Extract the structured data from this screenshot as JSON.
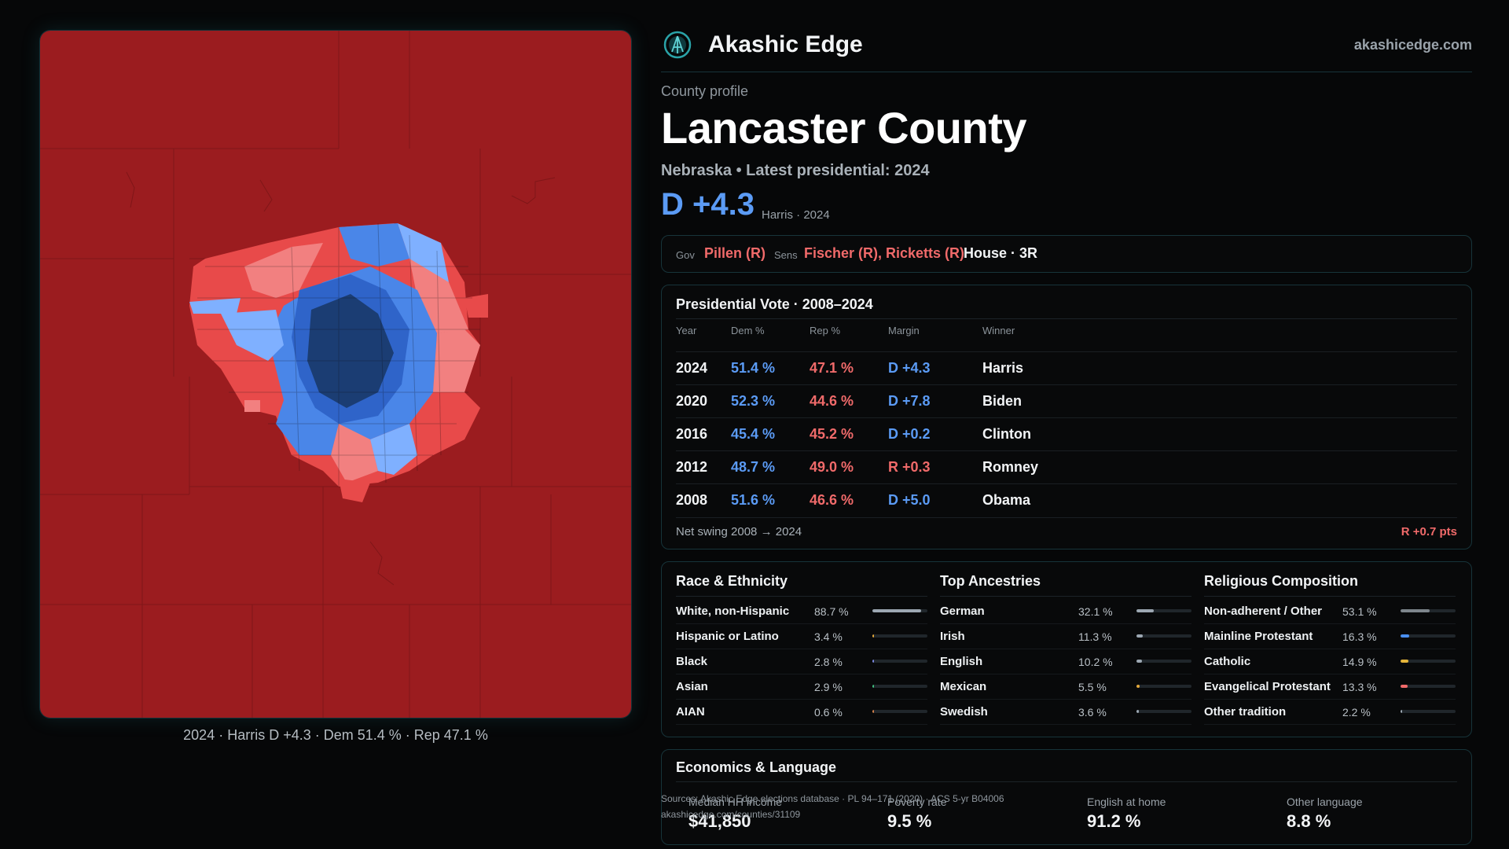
{
  "brand": {
    "name": "Akashic Edge",
    "site": "akashicedge.com"
  },
  "header": {
    "kicker": "County profile",
    "title": "Lancaster County",
    "subtitle": "Nebraska • Latest presidential: 2024",
    "margin": "D +4.3",
    "margin_note": "Harris · 2024"
  },
  "officials": {
    "gov_label": "Gov",
    "gov_value": "Pillen (R)",
    "sens_label": "Sens",
    "sens_value": "Fischer (R), Ricketts (R)",
    "house": "House · 3R"
  },
  "presidential": {
    "title": "Presidential Vote · 2008–2024",
    "columns": [
      "Year",
      "Dem %",
      "Rep %",
      "Margin",
      "Winner"
    ],
    "rows": [
      {
        "year": "2024",
        "dem": "51.4 %",
        "rep": "47.1 %",
        "margin": "D +4.3",
        "party": "D",
        "winner": "Harris"
      },
      {
        "year": "2020",
        "dem": "52.3 %",
        "rep": "44.6 %",
        "margin": "D +7.8",
        "party": "D",
        "winner": "Biden"
      },
      {
        "year": "2016",
        "dem": "45.4 %",
        "rep": "45.2 %",
        "margin": "D +0.2",
        "party": "D",
        "winner": "Clinton"
      },
      {
        "year": "2012",
        "dem": "48.7 %",
        "rep": "49.0 %",
        "margin": "R +0.3",
        "party": "R",
        "winner": "Romney"
      },
      {
        "year": "2008",
        "dem": "51.6 %",
        "rep": "46.6 %",
        "margin": "D +5.0",
        "party": "D",
        "winner": "Obama"
      }
    ],
    "swing_label": "Net swing 2008 → 2024",
    "swing_value": "R +0.7 pts"
  },
  "race": {
    "title": "Race & Ethnicity",
    "items": [
      {
        "name": "White, non-Hispanic",
        "pct": "88.7 %",
        "share": 0.887,
        "color": "#9ca7b2"
      },
      {
        "name": "Hispanic or Latino",
        "pct": "3.4 %",
        "share": 0.034,
        "color": "#e5a93a"
      },
      {
        "name": "Black",
        "pct": "2.8 %",
        "share": 0.028,
        "color": "#7a86e0"
      },
      {
        "name": "Asian",
        "pct": "2.9 %",
        "share": 0.029,
        "color": "#3fbf7f"
      },
      {
        "name": "AIAN",
        "pct": "0.6 %",
        "share": 0.006,
        "color": "#d4804a"
      }
    ]
  },
  "ancestries": {
    "title": "Top Ancestries",
    "items": [
      {
        "name": "German",
        "pct": "32.1 %",
        "share": 0.321,
        "color": "#9ca7b2"
      },
      {
        "name": "Irish",
        "pct": "11.3 %",
        "share": 0.113,
        "color": "#9ca7b2"
      },
      {
        "name": "English",
        "pct": "10.2 %",
        "share": 0.102,
        "color": "#9ca7b2"
      },
      {
        "name": "Mexican",
        "pct": "5.5 %",
        "share": 0.055,
        "color": "#e5a93a"
      },
      {
        "name": "Swedish",
        "pct": "3.6 %",
        "share": 0.036,
        "color": "#9ca7b2"
      }
    ]
  },
  "religion": {
    "title": "Religious Composition",
    "items": [
      {
        "name": "Non-adherent / Other",
        "pct": "53.1 %",
        "share": 0.531,
        "color": "#7d858c"
      },
      {
        "name": "Mainline Protestant",
        "pct": "16.3 %",
        "share": 0.163,
        "color": "#4a8ff0"
      },
      {
        "name": "Catholic",
        "pct": "14.9 %",
        "share": 0.149,
        "color": "#e5b53a"
      },
      {
        "name": "Evangelical Protestant",
        "pct": "13.3 %",
        "share": 0.133,
        "color": "#f06a6a"
      },
      {
        "name": "Other tradition",
        "pct": "2.2 %",
        "share": 0.022,
        "color": "#9ca7b2"
      }
    ]
  },
  "economics": {
    "title": "Economics & Language",
    "stats": [
      {
        "label": "Median HH income",
        "value": "$41,850"
      },
      {
        "label": "Poverty rate",
        "value": "9.5 %"
      },
      {
        "label": "English at home",
        "value": "91.2 %"
      },
      {
        "label": "Other language",
        "value": "8.8 %"
      }
    ]
  },
  "sources": {
    "line1": "Sources: Akashic Edge elections database · PL 94–171 (2020) · ACS 5-yr B04006",
    "line2": "akashicedge.com/counties/31109"
  },
  "map": {
    "caption": "2024 · Harris D +4.3 · Dem 51.4 % · Rep 47.1 %",
    "colors": {
      "rural_red": "#9b1c1f",
      "red": "#c42a2c",
      "light_red": "#e84a4a",
      "pale_red": "#f28080",
      "light_blue": "#7fb0ff",
      "blue": "#4a86e8",
      "mid_blue": "#2f64c9",
      "dark_blue": "#1b3d73"
    }
  },
  "colors": {
    "dem": "#5b9bf5",
    "rep": "#f06a6a",
    "accent": "#2aa3a8"
  }
}
